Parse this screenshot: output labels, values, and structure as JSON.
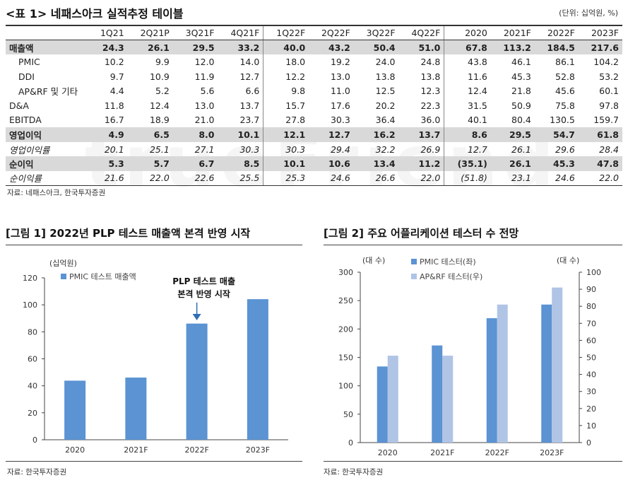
{
  "table_title": "<표 1> 네패스아크 실적추정 테이블",
  "unit": "(단위: 십억원, %)",
  "columns": [
    "",
    "1Q21",
    "2Q21P",
    "3Q21F",
    "4Q21F",
    "1Q22F",
    "2Q22F",
    "3Q22F",
    "4Q22F",
    "2020",
    "2021F",
    "2022F",
    "2023F"
  ],
  "rows": [
    {
      "label": "매출액",
      "kind": "shade",
      "values": [
        "24.3",
        "26.1",
        "29.5",
        "33.2",
        "40.0",
        "43.2",
        "50.4",
        "51.0",
        "67.8",
        "113.2",
        "184.5",
        "217.6"
      ]
    },
    {
      "label": "PMIC",
      "kind": "sub",
      "values": [
        "10.2",
        "9.9",
        "12.0",
        "14.0",
        "18.0",
        "19.2",
        "24.0",
        "24.8",
        "43.8",
        "46.1",
        "86.1",
        "104.2"
      ]
    },
    {
      "label": "DDI",
      "kind": "sub",
      "values": [
        "9.7",
        "10.9",
        "11.9",
        "12.7",
        "12.2",
        "13.0",
        "13.8",
        "13.8",
        "11.6",
        "45.3",
        "52.8",
        "53.2"
      ]
    },
    {
      "label": "AP&RF 및 기타",
      "kind": "sub",
      "values": [
        "4.4",
        "5.2",
        "5.6",
        "6.6",
        "9.8",
        "11.0",
        "12.5",
        "12.3",
        "12.4",
        "21.8",
        "45.6",
        "60.1"
      ]
    },
    {
      "label": "D&A",
      "kind": "plain",
      "values": [
        "11.8",
        "12.4",
        "13.0",
        "13.7",
        "15.7",
        "17.6",
        "20.2",
        "22.3",
        "31.5",
        "50.9",
        "75.8",
        "97.8"
      ]
    },
    {
      "label": "EBITDA",
      "kind": "plain",
      "values": [
        "16.7",
        "18.9",
        "21.0",
        "23.7",
        "27.8",
        "30.3",
        "36.4",
        "36.0",
        "40.1",
        "80.4",
        "130.5",
        "159.7"
      ]
    },
    {
      "label": "영업이익",
      "kind": "shade",
      "values": [
        "4.9",
        "6.5",
        "8.0",
        "10.1",
        "12.1",
        "12.7",
        "16.2",
        "13.7",
        "8.6",
        "29.5",
        "54.7",
        "61.8"
      ]
    },
    {
      "label": "영업이익률",
      "kind": "ital",
      "values": [
        "20.1",
        "25.1",
        "27.1",
        "30.3",
        "30.3",
        "29.4",
        "32.2",
        "26.9",
        "12.7",
        "26.1",
        "29.6",
        "28.4"
      ]
    },
    {
      "label": "순이익",
      "kind": "shade",
      "values": [
        "5.3",
        "5.7",
        "6.7",
        "8.5",
        "10.1",
        "10.6",
        "13.4",
        "11.2",
        "(35.1)",
        "26.1",
        "45.3",
        "47.8"
      ]
    },
    {
      "label": "순이익률",
      "kind": "ital last",
      "values": [
        "21.6",
        "22.0",
        "22.6",
        "25.5",
        "25.3",
        "24.6",
        "26.6",
        "22.0",
        "(51.8)",
        "23.1",
        "24.6",
        "22.0"
      ]
    }
  ],
  "table_source": "자료: 네패스아크, 한국투자증권",
  "watermark": "trueFriend",
  "fig1": {
    "title": "[그림 1] 2022년 PLP 테스트 매출액 본격 반영 시작",
    "source": "자료: 한국투자증권",
    "annotation": [
      "PLP 테스트 매출",
      "본격 반영 시작"
    ]
  },
  "fig2": {
    "title": "[그림 2] 주요 어플리케이션 테스터 수 전망",
    "source": "자료: 한국투자증권"
  },
  "chart_data": [
    {
      "type": "bar",
      "categories": [
        "2020",
        "2021F",
        "2022F",
        "2023F"
      ],
      "series": [
        {
          "name": "PMIC 테스트 매출액",
          "values": [
            43.8,
            46.1,
            86.1,
            104.2
          ],
          "color": "#5b93d3"
        }
      ],
      "ylabel": "(십억원)",
      "ylim": [
        0,
        120
      ],
      "yticks": [
        0,
        20,
        40,
        60,
        80,
        100,
        120
      ],
      "legend": "top-left",
      "grid": false
    },
    {
      "type": "bar",
      "categories": [
        "2020",
        "2021F",
        "2022F",
        "2023F"
      ],
      "series": [
        {
          "name": "PMIC 테스터(좌)",
          "axis": "left",
          "values": [
            134,
            171,
            219,
            243
          ],
          "color": "#5b93d3"
        },
        {
          "name": "AP&RF 테스터(우)",
          "axis": "right",
          "values": [
            51,
            51,
            81,
            91
          ],
          "color": "#b0c4e6"
        }
      ],
      "ylabel_left": "(대 수)",
      "ylabel_right": "(대 수)",
      "ylim_left": [
        0,
        300
      ],
      "yticks_left": [
        0,
        50,
        100,
        150,
        200,
        250,
        300
      ],
      "ylim_right": [
        0,
        100
      ],
      "yticks_right": [
        0,
        10,
        20,
        30,
        40,
        50,
        60,
        70,
        80,
        90,
        100
      ],
      "legend": "top-left",
      "grid": false
    }
  ]
}
